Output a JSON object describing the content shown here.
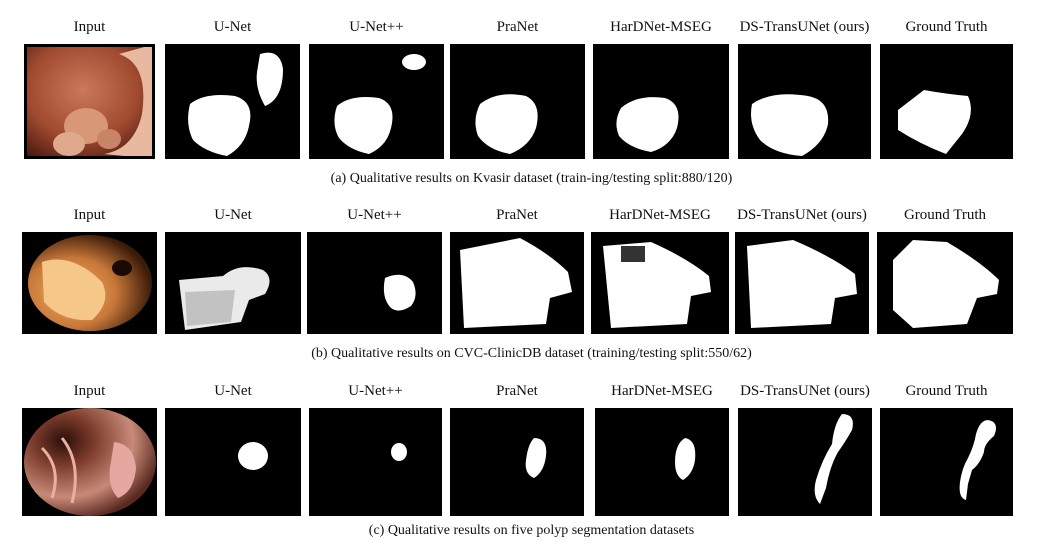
{
  "rows": [
    {
      "caption": "(a) Qualitative results on Kvasir dataset (train-ing/testing split:880/120)",
      "labels": [
        "Input",
        "U-Net",
        "U-Net++",
        "PraNet",
        "HarDNet-MSEG",
        "DS-TransUNet (ours)",
        "Ground Truth"
      ]
    },
    {
      "caption": "(b) Qualitative results on CVC-ClinicDB dataset (training/testing split:550/62)",
      "labels": [
        "Input",
        "U-Net",
        "U-Net++",
        "PraNet",
        "HarDNet-MSEG",
        "DS-TransUNet (ours)",
        "Ground Truth"
      ]
    },
    {
      "caption": "(c) Qualitative results on five polyp segmentation datasets",
      "labels": [
        "Input",
        "U-Net",
        "U-Net++",
        "PraNet",
        "HarDNet-MSEG",
        "DS-TransUNet (ours)",
        "Ground Truth"
      ]
    }
  ]
}
